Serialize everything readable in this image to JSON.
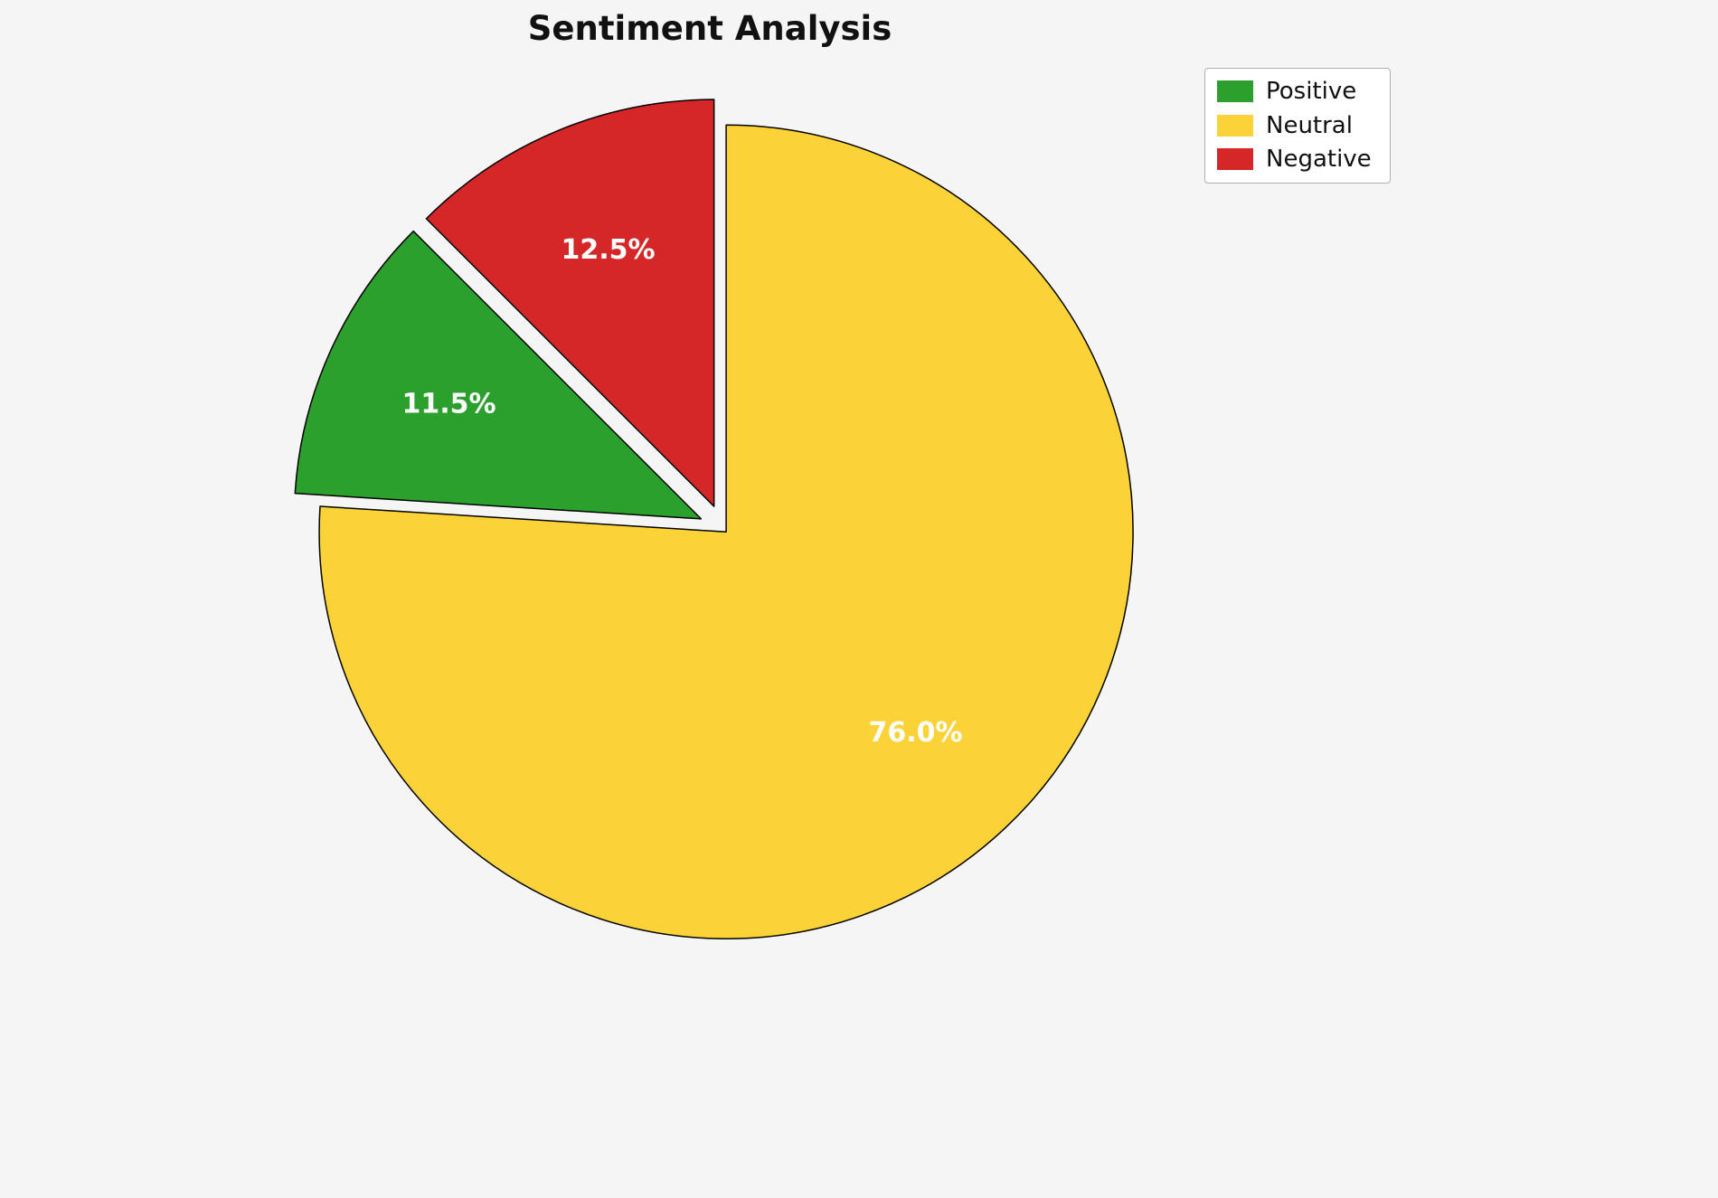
{
  "chart_data": {
    "type": "pie",
    "title": "Sentiment Analysis",
    "slices": [
      {
        "label": "Positive",
        "value": 11.5,
        "pct_label": "11.5%",
        "color": "#2ca02c",
        "explode": 0.06
      },
      {
        "label": "Neutral",
        "value": 76.0,
        "pct_label": "76.0%",
        "color": "#fbd237",
        "explode": 0.01
      },
      {
        "label": "Negative",
        "value": 12.5,
        "pct_label": "12.5%",
        "color": "#d62728",
        "explode": 0.06
      }
    ],
    "draw_order": [
      2,
      0,
      1
    ],
    "start_angle": 90,
    "direction": "counterclockwise",
    "legend_position": "upper right",
    "legend_entries": [
      "Positive",
      "Neutral",
      "Negative"
    ],
    "background": "#f5f5f5",
    "slice_edge_color": "#000000",
    "pct_label_color": "#ffffff"
  }
}
